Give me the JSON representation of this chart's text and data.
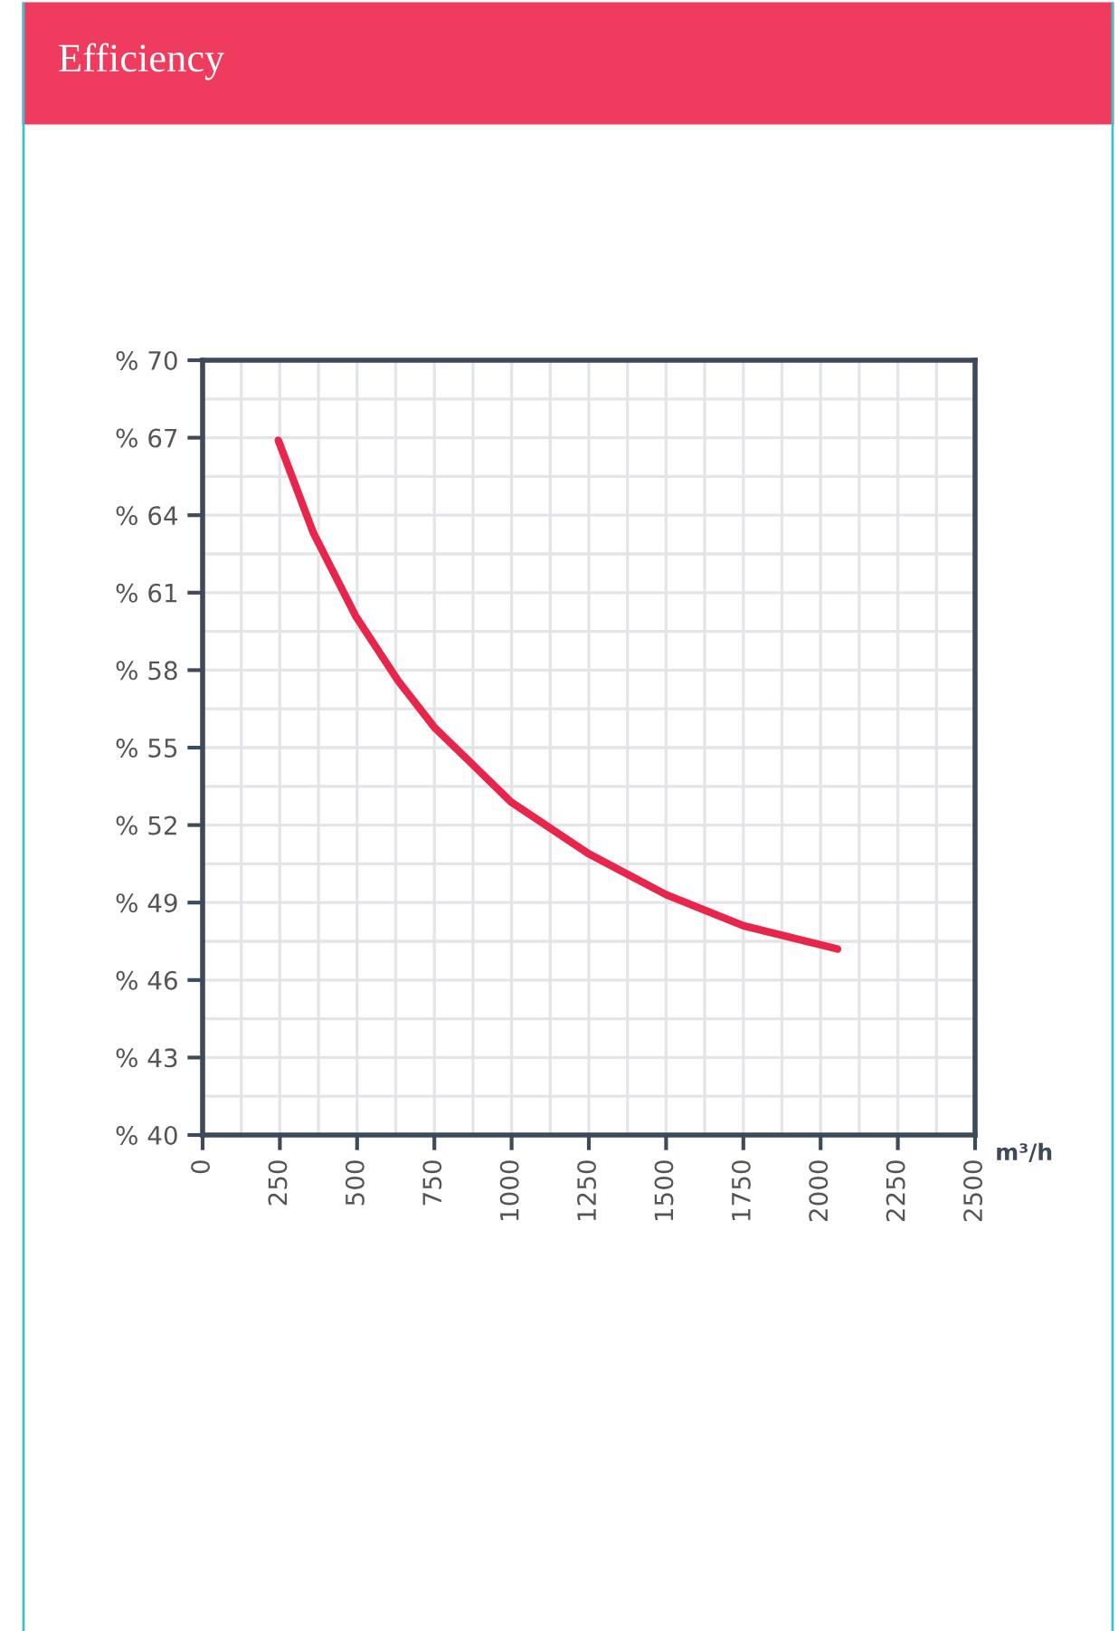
{
  "chart_data": {
    "type": "line",
    "title": "Efficiency",
    "xlabel": "m³/h",
    "series": [
      {
        "color": "#e8264c",
        "x": [
          245,
          359,
          495,
          632,
          749,
          998,
          1248,
          1501,
          1751,
          2055
        ],
        "values": [
          66.9,
          63.3,
          60.1,
          57.6,
          55.8,
          52.9,
          50.9,
          49.3,
          48.1,
          47.2
        ]
      }
    ],
    "xlim": [
      0,
      2500
    ],
    "xticks": [
      0,
      250,
      500,
      750,
      1000,
      1250,
      1500,
      1750,
      2000,
      2250,
      2500
    ],
    "ylim": [
      40,
      70
    ],
    "yticks": [
      {
        "value": 40,
        "label": "% 40"
      },
      {
        "value": 43,
        "label": "% 43"
      },
      {
        "value": 46,
        "label": "% 46"
      },
      {
        "value": 49,
        "label": "% 49"
      },
      {
        "value": 52,
        "label": "% 52"
      },
      {
        "value": 55,
        "label": "% 55"
      },
      {
        "value": 58,
        "label": "% 58"
      },
      {
        "value": 61,
        "label": "% 61"
      },
      {
        "value": 64,
        "label": "% 64"
      },
      {
        "value": 67,
        "label": "% 67"
      },
      {
        "value": 70,
        "label": "% 70"
      }
    ],
    "grid": true,
    "marker": "none",
    "line_style": "solid"
  }
}
